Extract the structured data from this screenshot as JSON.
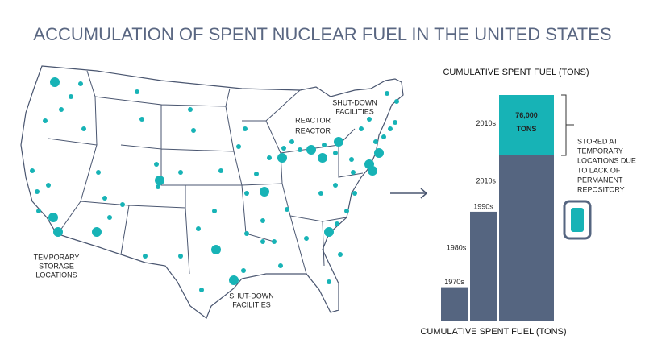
{
  "chart_data": {
    "type": "bar",
    "title": "ACCUMULATION OF SPENT NUCLEAR FUEL IN THE UNITED STATES",
    "subtitle": "CUMULATIVE SPENT FUEL (TONS)",
    "x_label": "CUMULATIVE SPENT FUEL (TONS)",
    "categories": [
      "1970s",
      "1990s",
      "2010s"
    ],
    "values": [
      42000,
      137000,
      208000
    ],
    "color": "#556580",
    "stack": {
      "category": "2010s",
      "value": 76000,
      "value_label": [
        "76,000",
        "TONS"
      ],
      "color": "#17b3b6"
    },
    "ylim": [
      0,
      284000
    ],
    "annotations": {
      "mid_label": "1980s",
      "stored_note": [
        "STORED AT",
        "TEMPORARY",
        "LOCATIONS DUE",
        "TO LACK OF",
        "PERMANENT",
        "REPOSITORY"
      ]
    },
    "map_labels": {
      "shutdown_ne": [
        "SHUT-DOWN",
        "FACILITIES"
      ],
      "reactor": [
        "REACTOR",
        "REACTOR"
      ],
      "storage": [
        "TEMPORARY",
        "STORAGE",
        "LOCATIONS"
      ],
      "shutdown_tx": [
        "SHUT-DOWN",
        "FACILITIES"
      ]
    }
  }
}
